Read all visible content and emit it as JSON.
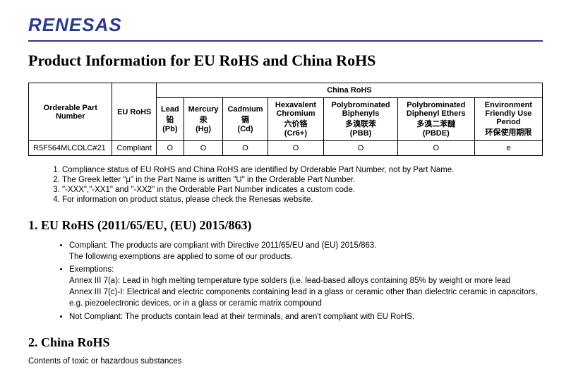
{
  "brand": "RENESAS",
  "page_title": "Product Information for EU RoHS and China RoHS",
  "table": {
    "col_part": "Orderable Part Number",
    "col_eu": "EU RoHS",
    "group_china": "China RoHS",
    "cols_china": [
      {
        "l1": "Lead",
        "l2": "铅",
        "l3": "(Pb)"
      },
      {
        "l1": "Mercury",
        "l2": "汞",
        "l3": "(Hg)"
      },
      {
        "l1": "Cadmium",
        "l2": "镉",
        "l3": "(Cd)"
      },
      {
        "l1": "Hexavalent Chromium",
        "l2": "六价铬",
        "l3": "(Cr6+)"
      },
      {
        "l1": "Polybrominated Biphenyls",
        "l2": "多溴联苯",
        "l3": "(PBB)"
      },
      {
        "l1": "Polybrominated Diphenyl Ethers",
        "l2": "多溴二苯醚",
        "l3": "(PBDE)"
      },
      {
        "l1": "Environment Friendly Use Period",
        "l2": "环保使用期限",
        "l3": ""
      }
    ],
    "row": {
      "part": "R5F564MLCDLC#21",
      "eu": "Compliant",
      "vals": [
        "O",
        "O",
        "O",
        "O",
        "O",
        "O",
        "e"
      ]
    }
  },
  "notes": [
    "Compliance status of EU RoHS and China RoHS are identified by Orderable Part Number, not by Part Name.",
    "The Greek letter \"μ\" in the Part Name is written \"U\" in the Orderable Part Number.",
    "\"-XXX\",\"-XX1\" and \"-XX2\" in the Orderable Part Number indicates a custom code.",
    "For information on product status, please check the Renesas website."
  ],
  "section1": {
    "heading": "1. EU RoHS (2011/65/EU, (EU) 2015/863)",
    "bullets": [
      "Compliant: The products are compliant with Directive 2011/65/EU and (EU) 2015/863.\nThe following exemptions are applied to some of our products.",
      "Exemptions:\nAnnex III 7(a): Lead in high melting temperature type solders (i.e. lead-based alloys containing 85% by weight or more lead\nAnnex III 7(c)-I: Electrical and electric components containing lead in a glass or ceramic other than dielectric ceramic in capacitors, e.g. piezoelectronic devices, or in a glass or ceramic matrix compound",
      "Not Compliant: The products contain lead at their terminals, and aren't compliant with EU RoHS."
    ]
  },
  "section2": {
    "heading": "2. China RoHS",
    "body": "Contents of toxic or hazardous substances"
  }
}
